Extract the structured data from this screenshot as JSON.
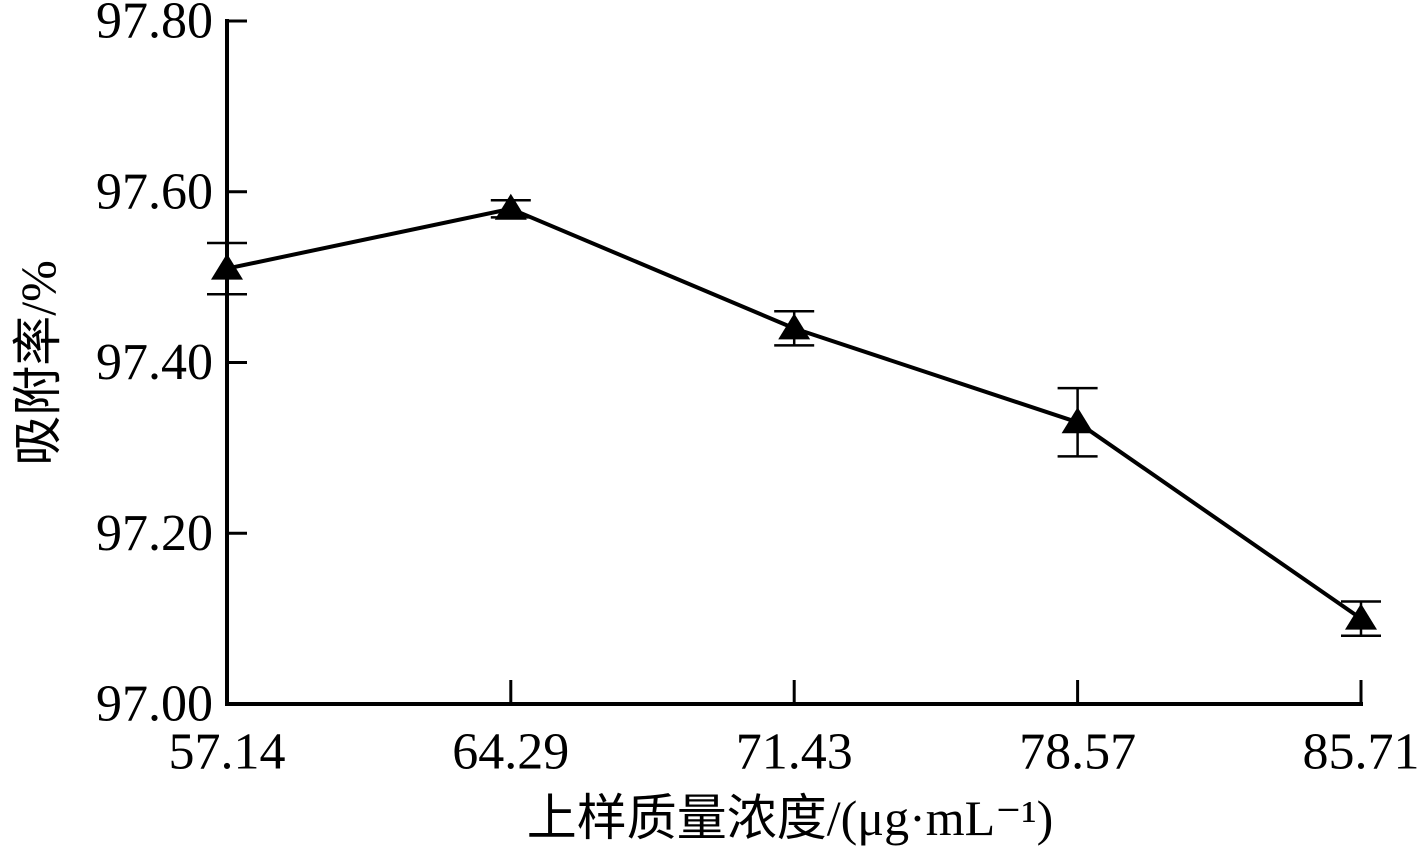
{
  "chart_data": {
    "type": "line",
    "xlabel": "上样质量浓度/(μg·mL⁻¹)",
    "ylabel": "吸附率/%",
    "x": [
      57.14,
      64.29,
      71.43,
      78.57,
      85.71
    ],
    "xlim": [
      57.14,
      85.71
    ],
    "ylim": [
      97.0,
      97.8
    ],
    "y_ticks": [
      "97.00",
      "97.20",
      "97.40",
      "97.60",
      "97.80"
    ],
    "series": [
      {
        "values": [
          97.51,
          97.58,
          97.44,
          97.33,
          97.1
        ],
        "error": [
          0.03,
          0.01,
          0.02,
          0.04,
          0.02
        ],
        "marker": "triangle",
        "color": "#000000"
      }
    ],
    "grid": false,
    "legend": "none"
  }
}
